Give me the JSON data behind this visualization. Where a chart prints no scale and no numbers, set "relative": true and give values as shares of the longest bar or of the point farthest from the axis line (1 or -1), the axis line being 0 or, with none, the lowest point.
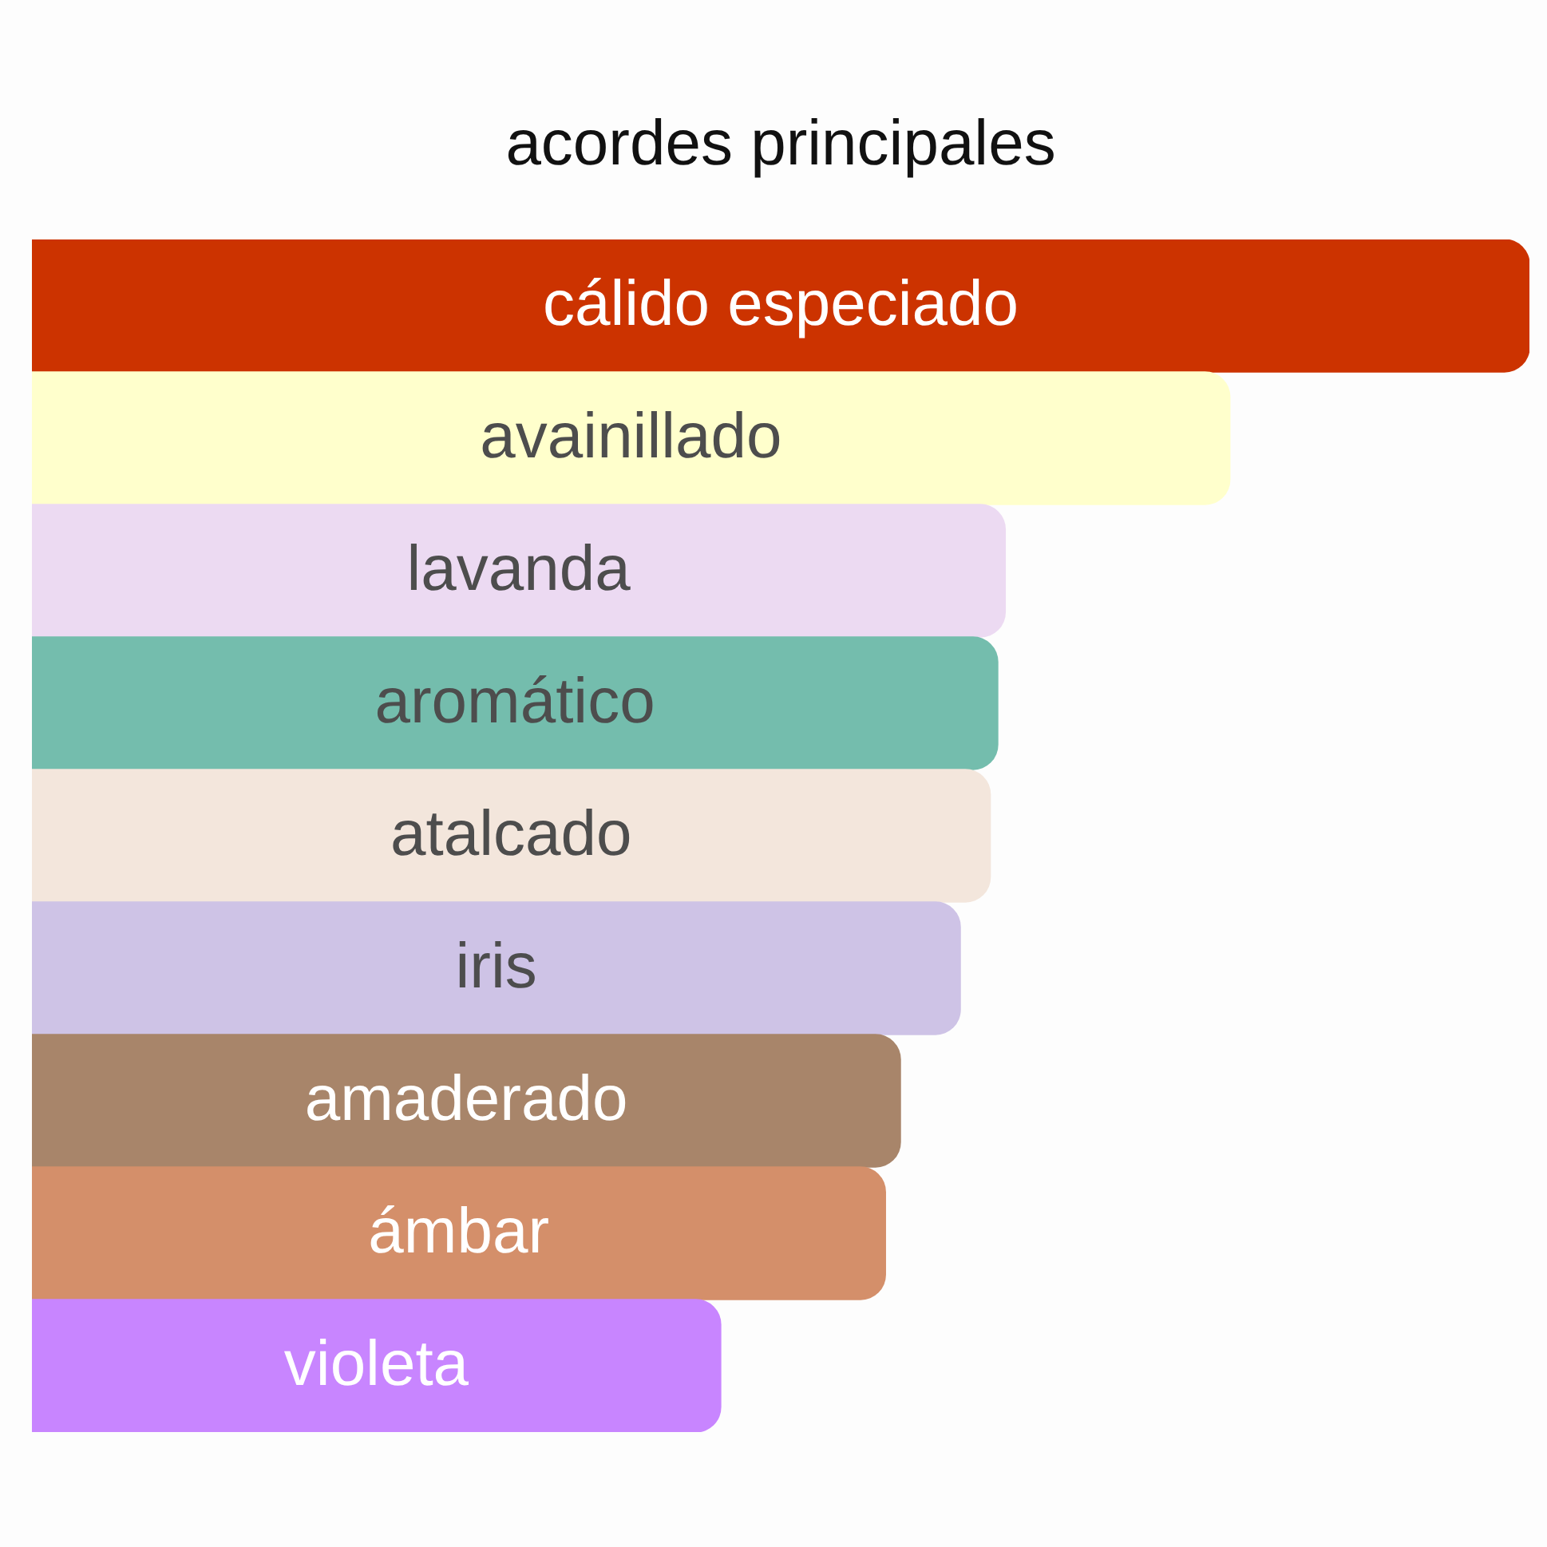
{
  "chart_data": {
    "type": "bar",
    "orientation": "horizontal",
    "relative": true,
    "title": "acordes principales",
    "categories": [
      "cálido especiado",
      "avainillado",
      "lavanda",
      "aromático",
      "atalcado",
      "iris",
      "amaderado",
      "ámbar",
      "violeta"
    ],
    "values": [
      1,
      0.8,
      0.65,
      0.645,
      0.64,
      0.62,
      0.58,
      0.57,
      0.46
    ],
    "colors": [
      "#cc3300",
      "#ffffcc",
      "#ecdaf2",
      "#74bdad",
      "#f3e6dc",
      "#cec3e6",
      "#a8856a",
      "#d48f6a",
      "#c885ff"
    ],
    "legend": false
  }
}
